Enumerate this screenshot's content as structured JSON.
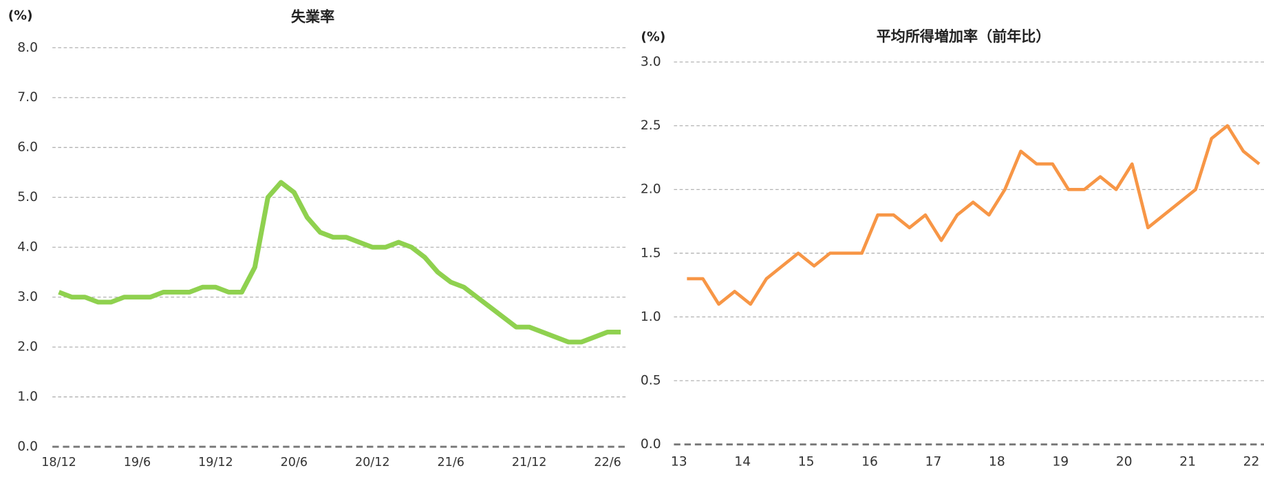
{
  "chart_data": [
    {
      "type": "line",
      "title": "失業率",
      "y_label": "(%)",
      "categories": [
        "18/12",
        null,
        null,
        null,
        null,
        null,
        "19/6",
        null,
        null,
        null,
        null,
        null,
        "19/12",
        null,
        null,
        null,
        null,
        null,
        "20/6",
        null,
        null,
        null,
        null,
        null,
        "20/12",
        null,
        null,
        null,
        null,
        null,
        "21/6",
        null,
        null,
        null,
        null,
        null,
        "21/12",
        null,
        null,
        null,
        null,
        null,
        "22/6",
        null
      ],
      "values": [
        3.1,
        3.0,
        3.0,
        2.9,
        2.9,
        3.0,
        3.0,
        3.0,
        3.1,
        3.1,
        3.1,
        3.2,
        3.2,
        3.1,
        3.1,
        3.6,
        5.0,
        5.3,
        5.1,
        4.6,
        4.3,
        4.2,
        4.2,
        4.1,
        4.0,
        4.0,
        4.1,
        4.0,
        3.8,
        3.5,
        3.3,
        3.2,
        3.0,
        2.8,
        2.6,
        2.4,
        2.4,
        2.3,
        2.2,
        2.1,
        2.1,
        2.2,
        2.3,
        2.3
      ],
      "color": "#8fd14f",
      "ylim": [
        0,
        8
      ],
      "yticks": [
        {
          "value": 0,
          "label": "0.0"
        },
        {
          "value": 1,
          "label": "1.0"
        },
        {
          "value": 2,
          "label": "2.0"
        },
        {
          "value": 3,
          "label": "3.0"
        },
        {
          "value": 4,
          "label": "4.0"
        },
        {
          "value": 5,
          "label": "5.0"
        },
        {
          "value": 6,
          "label": "6.0"
        },
        {
          "value": 7,
          "label": "7.0"
        },
        {
          "value": 8,
          "label": "8.0"
        }
      ],
      "grid": true
    },
    {
      "type": "line",
      "title": "平均所得増加率（前年比）",
      "y_label": "(%)",
      "x": [
        13.125,
        13.375,
        13.625,
        13.875,
        14.125,
        14.375,
        14.625,
        14.875,
        15.125,
        15.375,
        15.625,
        15.875,
        16.125,
        16.375,
        16.625,
        16.875,
        17.125,
        17.375,
        17.625,
        17.875,
        18.125,
        18.375,
        18.625,
        18.875,
        19.125,
        19.375,
        19.625,
        19.875,
        20.125,
        20.375,
        20.625,
        20.875,
        21.125,
        21.375,
        21.625,
        21.875,
        22.125
      ],
      "values": [
        1.3,
        1.3,
        1.1,
        1.2,
        1.1,
        1.3,
        1.4,
        1.5,
        1.4,
        1.5,
        1.5,
        1.5,
        1.8,
        1.8,
        1.7,
        1.8,
        1.6,
        1.8,
        1.9,
        1.8,
        2.0,
        2.3,
        2.2,
        2.2,
        2.0,
        2.0,
        2.1,
        2.0,
        2.2,
        1.7,
        1.8,
        1.9,
        2.0,
        2.4,
        2.5,
        2.3,
        2.2
      ],
      "color": "#f79646",
      "xlim": [
        12.92,
        22.2
      ],
      "xticks": [
        13,
        14,
        15,
        16,
        17,
        18,
        19,
        20,
        21,
        22
      ],
      "ylim": [
        0,
        3
      ],
      "yticks": [
        {
          "value": 0,
          "label": "0.0"
        },
        {
          "value": 0.5,
          "label": "0.5"
        },
        {
          "value": 1,
          "label": "1.0"
        },
        {
          "value": 1.5,
          "label": "1.5"
        },
        {
          "value": 2,
          "label": "2.0"
        },
        {
          "value": 2.5,
          "label": "2.5"
        },
        {
          "value": 3,
          "label": "3.0"
        }
      ],
      "grid": true
    }
  ]
}
